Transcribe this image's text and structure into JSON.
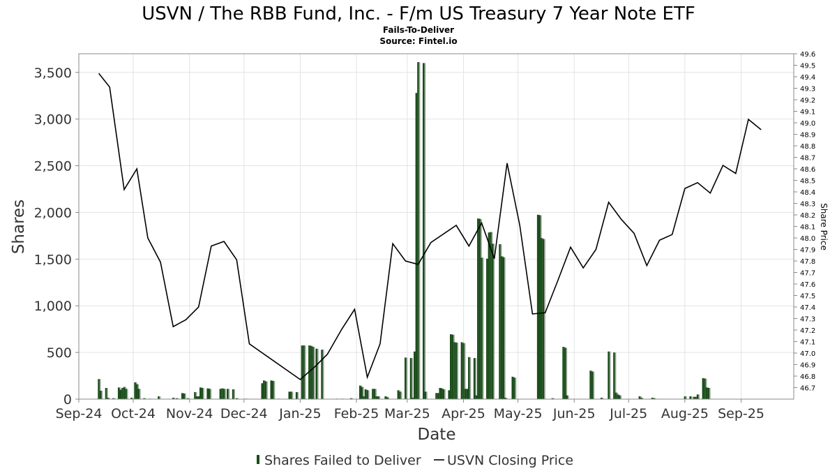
{
  "chart_data": {
    "type": "bar+line",
    "title": "USVN / The RBB Fund, Inc. - F/m US Treasury 7 Year Note ETF",
    "subtitle_1": "Fails-To-Deliver",
    "subtitle_2": "Source: Fintel.io",
    "xlabel": "Date",
    "ylabel": "Shares",
    "y2label": "Share Price",
    "x_range": [
      "2024-09-01",
      "2025-09-30"
    ],
    "ylim": [
      0,
      3700
    ],
    "y2lim": [
      46.6,
      49.6
    ],
    "y_ticks": [
      0,
      500,
      1000,
      1500,
      2000,
      2500,
      3000,
      3500
    ],
    "y_tick_labels": [
      "0",
      "500",
      "1,000",
      "1,500",
      "2,000",
      "2,500",
      "3,000",
      "3,500"
    ],
    "y2_ticks": [
      46.7,
      46.8,
      46.9,
      47.0,
      47.1,
      47.2,
      47.3,
      47.4,
      47.5,
      47.6,
      47.7,
      47.8,
      47.9,
      48.0,
      48.1,
      48.2,
      48.3,
      48.4,
      48.5,
      48.6,
      48.7,
      48.8,
      48.9,
      49.0,
      49.1,
      49.2,
      49.3,
      49.4,
      49.5,
      49.6
    ],
    "x_ticks": [
      {
        "date": "2024-09-01",
        "label": "Sep-24"
      },
      {
        "date": "2024-10-01",
        "label": "Oct-24"
      },
      {
        "date": "2024-11-01",
        "label": "Nov-24"
      },
      {
        "date": "2024-12-01",
        "label": "Dec-24"
      },
      {
        "date": "2025-01-01",
        "label": "Jan-25"
      },
      {
        "date": "2025-02-01",
        "label": "Feb-25"
      },
      {
        "date": "2025-03-01",
        "label": "Mar-25"
      },
      {
        "date": "2025-04-01",
        "label": "Apr-25"
      },
      {
        "date": "2025-05-01",
        "label": "May-25"
      },
      {
        "date": "2025-06-01",
        "label": "Jun-25"
      },
      {
        "date": "2025-07-01",
        "label": "Jul-25"
      },
      {
        "date": "2025-08-01",
        "label": "Aug-25"
      },
      {
        "date": "2025-09-01",
        "label": "Sep-25"
      }
    ],
    "grid": true,
    "legend_position": "bottom",
    "series": [
      {
        "name": "Shares Failed to Deliver",
        "type": "bar",
        "color": "#1a4d1a",
        "points": [
          [
            "2024-09-12",
            215
          ],
          [
            "2024-09-13",
            90
          ],
          [
            "2024-09-16",
            120
          ],
          [
            "2024-09-17",
            15
          ],
          [
            "2024-09-20",
            10
          ],
          [
            "2024-09-23",
            125
          ],
          [
            "2024-09-24",
            100
          ],
          [
            "2024-09-25",
            120
          ],
          [
            "2024-09-26",
            130
          ],
          [
            "2024-09-27",
            110
          ],
          [
            "2024-09-30",
            15
          ],
          [
            "2024-10-02",
            180
          ],
          [
            "2024-10-03",
            160
          ],
          [
            "2024-10-04",
            110
          ],
          [
            "2024-10-07",
            10
          ],
          [
            "2024-10-10",
            5
          ],
          [
            "2024-10-15",
            30
          ],
          [
            "2024-10-23",
            15
          ],
          [
            "2024-10-25",
            10
          ],
          [
            "2024-10-28",
            65
          ],
          [
            "2024-10-29",
            60
          ],
          [
            "2024-10-31",
            10
          ],
          [
            "2024-11-04",
            75
          ],
          [
            "2024-11-05",
            30
          ],
          [
            "2024-11-06",
            30
          ],
          [
            "2024-11-07",
            125
          ],
          [
            "2024-11-08",
            120
          ],
          [
            "2024-11-11",
            115
          ],
          [
            "2024-11-12",
            110
          ],
          [
            "2024-11-18",
            110
          ],
          [
            "2024-11-19",
            115
          ],
          [
            "2024-11-20",
            110
          ],
          [
            "2024-11-22",
            110
          ],
          [
            "2024-11-25",
            105
          ],
          [
            "2024-11-27",
            10
          ],
          [
            "2024-12-02",
            5
          ],
          [
            "2024-12-11",
            170
          ],
          [
            "2024-12-12",
            200
          ],
          [
            "2024-12-13",
            190
          ],
          [
            "2024-12-16",
            200
          ],
          [
            "2024-12-17",
            195
          ],
          [
            "2024-12-20",
            5
          ],
          [
            "2024-12-26",
            80
          ],
          [
            "2024-12-27",
            80
          ],
          [
            "2024-12-30",
            75
          ],
          [
            "2025-01-02",
            575
          ],
          [
            "2025-01-03",
            575
          ],
          [
            "2025-01-06",
            575
          ],
          [
            "2025-01-07",
            570
          ],
          [
            "2025-01-08",
            560
          ],
          [
            "2025-01-10",
            540
          ],
          [
            "2025-01-13",
            530
          ],
          [
            "2025-01-21",
            5
          ],
          [
            "2025-01-24",
            5
          ],
          [
            "2025-01-29",
            10
          ],
          [
            "2025-02-03",
            145
          ],
          [
            "2025-02-04",
            130
          ],
          [
            "2025-02-05",
            30
          ],
          [
            "2025-02-06",
            105
          ],
          [
            "2025-02-07",
            95
          ],
          [
            "2025-02-10",
            110
          ],
          [
            "2025-02-11",
            110
          ],
          [
            "2025-02-12",
            30
          ],
          [
            "2025-02-13",
            30
          ],
          [
            "2025-02-17",
            30
          ],
          [
            "2025-02-18",
            20
          ],
          [
            "2025-02-24",
            95
          ],
          [
            "2025-02-25",
            80
          ],
          [
            "2025-02-28",
            445
          ],
          [
            "2025-03-03",
            440
          ],
          [
            "2025-03-04",
            15
          ],
          [
            "2025-03-05",
            510
          ],
          [
            "2025-03-06",
            3280
          ],
          [
            "2025-03-07",
            3610
          ],
          [
            "2025-03-10",
            3600
          ],
          [
            "2025-03-11",
            80
          ],
          [
            "2025-03-17",
            65
          ],
          [
            "2025-03-18",
            65
          ],
          [
            "2025-03-19",
            120
          ],
          [
            "2025-03-20",
            115
          ],
          [
            "2025-03-21",
            105
          ],
          [
            "2025-03-24",
            95
          ],
          [
            "2025-03-25",
            695
          ],
          [
            "2025-03-26",
            690
          ],
          [
            "2025-03-27",
            610
          ],
          [
            "2025-03-28",
            605
          ],
          [
            "2025-03-31",
            610
          ],
          [
            "2025-04-01",
            600
          ],
          [
            "2025-04-02",
            110
          ],
          [
            "2025-04-03",
            110
          ],
          [
            "2025-04-04",
            450
          ],
          [
            "2025-04-07",
            440
          ],
          [
            "2025-04-08",
            40
          ],
          [
            "2025-04-09",
            1935
          ],
          [
            "2025-04-10",
            1930
          ],
          [
            "2025-04-11",
            1515
          ],
          [
            "2025-04-14",
            1505
          ],
          [
            "2025-04-15",
            1785
          ],
          [
            "2025-04-16",
            1790
          ],
          [
            "2025-04-17",
            1665
          ],
          [
            "2025-04-21",
            1660
          ],
          [
            "2025-04-22",
            1530
          ],
          [
            "2025-04-23",
            1520
          ],
          [
            "2025-04-24",
            15
          ],
          [
            "2025-04-28",
            240
          ],
          [
            "2025-04-29",
            230
          ],
          [
            "2025-05-12",
            1975
          ],
          [
            "2025-05-13",
            1970
          ],
          [
            "2025-05-14",
            1725
          ],
          [
            "2025-05-15",
            1715
          ],
          [
            "2025-05-20",
            10
          ],
          [
            "2025-05-26",
            560
          ],
          [
            "2025-05-27",
            550
          ],
          [
            "2025-05-28",
            40
          ],
          [
            "2025-06-10",
            305
          ],
          [
            "2025-06-11",
            295
          ],
          [
            "2025-06-16",
            15
          ],
          [
            "2025-06-20",
            510
          ],
          [
            "2025-06-23",
            500
          ],
          [
            "2025-06-24",
            70
          ],
          [
            "2025-06-25",
            50
          ],
          [
            "2025-06-26",
            40
          ],
          [
            "2025-07-07",
            30
          ],
          [
            "2025-07-08",
            15
          ],
          [
            "2025-07-14",
            15
          ],
          [
            "2025-07-15",
            10
          ],
          [
            "2025-08-01",
            30
          ],
          [
            "2025-08-04",
            30
          ],
          [
            "2025-08-06",
            25
          ],
          [
            "2025-08-07",
            25
          ],
          [
            "2025-08-08",
            50
          ],
          [
            "2025-08-11",
            225
          ],
          [
            "2025-08-12",
            220
          ],
          [
            "2025-08-13",
            125
          ],
          [
            "2025-08-14",
            120
          ]
        ]
      },
      {
        "name": "USVN Closing Price",
        "type": "line",
        "color": "#000000",
        "points": [
          [
            "2024-09-12",
            49.43
          ],
          [
            "2024-09-18",
            49.31
          ],
          [
            "2024-09-26",
            48.42
          ],
          [
            "2024-10-03",
            48.6
          ],
          [
            "2024-10-09",
            48.0
          ],
          [
            "2024-10-16",
            47.79
          ],
          [
            "2024-10-23",
            47.23
          ],
          [
            "2024-10-30",
            47.29
          ],
          [
            "2024-11-06",
            47.4
          ],
          [
            "2024-11-13",
            47.93
          ],
          [
            "2024-11-20",
            47.97
          ],
          [
            "2024-11-27",
            47.81
          ],
          [
            "2024-12-04",
            47.08
          ],
          [
            "2025-01-01",
            46.77
          ],
          [
            "2025-01-09",
            46.88
          ],
          [
            "2025-01-16",
            46.99
          ],
          [
            "2025-01-24",
            47.21
          ],
          [
            "2025-01-31",
            47.38
          ],
          [
            "2025-02-07",
            46.79
          ],
          [
            "2025-02-14",
            47.08
          ],
          [
            "2025-02-21",
            47.95
          ],
          [
            "2025-02-28",
            47.8
          ],
          [
            "2025-03-07",
            47.77
          ],
          [
            "2025-03-14",
            47.96
          ],
          [
            "2025-03-28",
            48.11
          ],
          [
            "2025-04-04",
            47.93
          ],
          [
            "2025-04-11",
            48.13
          ],
          [
            "2025-04-18",
            47.82
          ],
          [
            "2025-04-25",
            48.65
          ],
          [
            "2025-05-02",
            48.11
          ],
          [
            "2025-05-09",
            47.34
          ],
          [
            "2025-05-16",
            47.35
          ],
          [
            "2025-05-23",
            47.63
          ],
          [
            "2025-05-30",
            47.92
          ],
          [
            "2025-06-06",
            47.74
          ],
          [
            "2025-06-13",
            47.9
          ],
          [
            "2025-06-20",
            48.31
          ],
          [
            "2025-06-27",
            48.16
          ],
          [
            "2025-07-04",
            48.04
          ],
          [
            "2025-07-11",
            47.76
          ],
          [
            "2025-07-18",
            47.98
          ],
          [
            "2025-07-25",
            48.03
          ],
          [
            "2025-08-01",
            48.43
          ],
          [
            "2025-08-08",
            48.48
          ],
          [
            "2025-08-15",
            48.39
          ],
          [
            "2025-08-22",
            48.63
          ],
          [
            "2025-08-29",
            48.56
          ],
          [
            "2025-09-05",
            49.03
          ],
          [
            "2025-09-12",
            48.94
          ]
        ]
      }
    ]
  }
}
